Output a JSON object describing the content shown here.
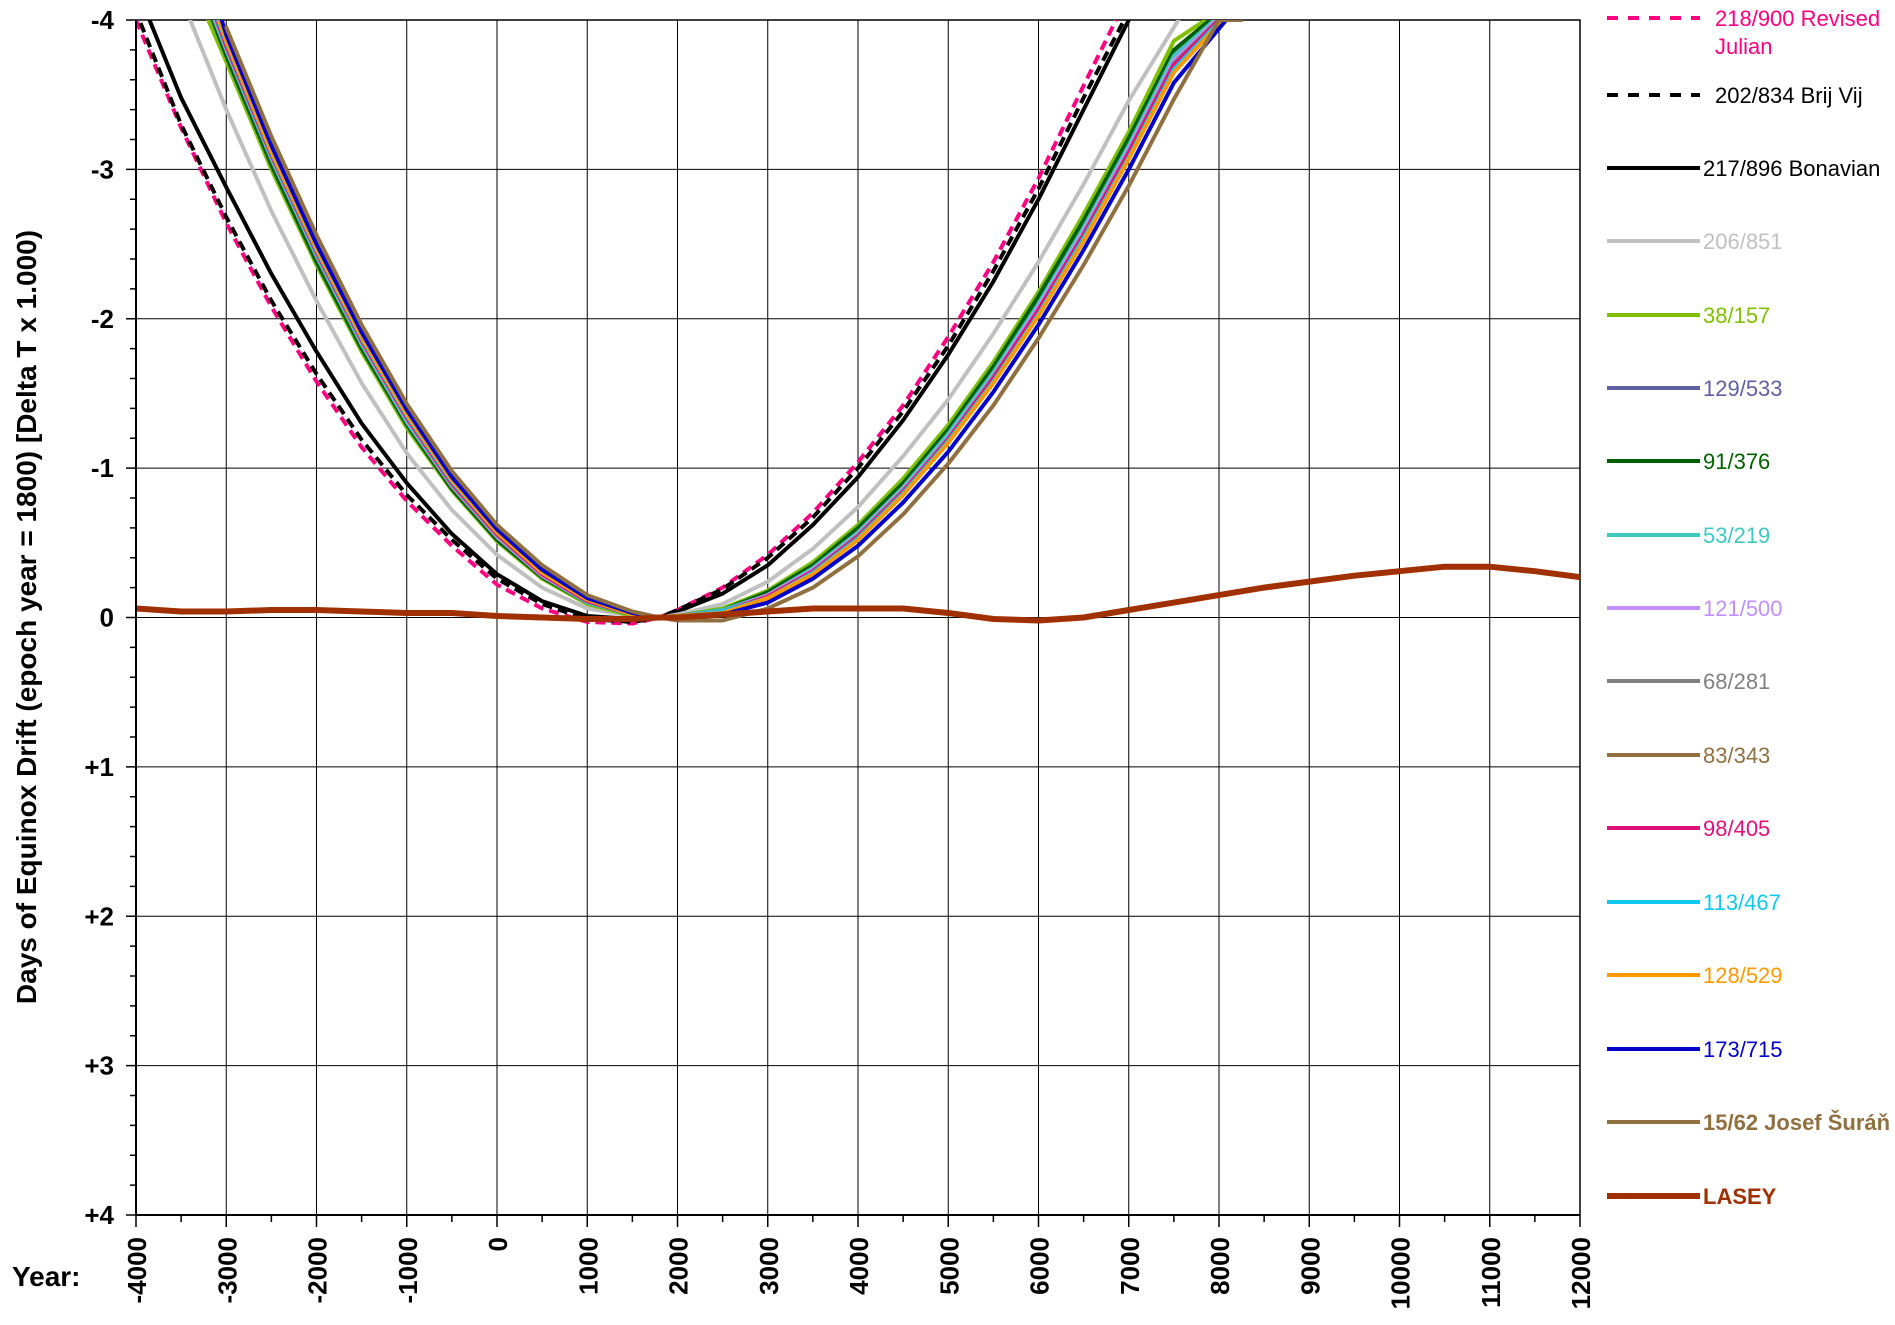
{
  "chart_data": {
    "type": "line",
    "title": "",
    "xlabel": "Year:",
    "ylabel": "Days of Equinox Drift (epoch year = 1800) [Delta T x 1.000)",
    "xlim": [
      -4000,
      12000
    ],
    "ylim": [
      -4,
      4
    ],
    "y_inverted": true,
    "grid": true,
    "legend_position": "right",
    "x_ticks": [
      -4000,
      -3000,
      -2000,
      -1000,
      0,
      1000,
      2000,
      3000,
      4000,
      5000,
      6000,
      7000,
      8000,
      9000,
      10000,
      11000,
      12000
    ],
    "x_tick_labels": [
      "-4000",
      "-3000",
      "-2000",
      "-1000",
      "0",
      "1000",
      "2000",
      "3000",
      "4000",
      "5000",
      "6000",
      "7000",
      "8000",
      "9000",
      "10000",
      "11000",
      "12000"
    ],
    "y_ticks": [
      -4,
      -3,
      -2,
      -1,
      0,
      1,
      2,
      3,
      4
    ],
    "y_tick_labels": [
      "-4",
      "-3",
      "-2",
      "-1",
      "0",
      "+1",
      "+2",
      "+3",
      "+4"
    ],
    "series": [
      {
        "name": "218/900 Revised Julian",
        "color": "#ff0080",
        "dashed": true,
        "bold": false,
        "x": [
          -4000,
          -3500,
          -3000,
          -2500,
          -2000,
          -1500,
          -1000,
          -500,
          0,
          500,
          1000,
          1500,
          1800,
          2000,
          2500,
          3000,
          3500,
          4000,
          4500,
          5000,
          5500,
          6000,
          6500,
          6900
        ],
        "y": [
          -4.0,
          -3.28,
          -2.64,
          -2.08,
          -1.58,
          -1.14,
          -0.78,
          -0.48,
          -0.22,
          -0.06,
          0.03,
          0.04,
          0.0,
          -0.05,
          -0.2,
          -0.42,
          -0.7,
          -1.04,
          -1.42,
          -1.88,
          -2.38,
          -2.94,
          -3.56,
          -4.05
        ]
      },
      {
        "name": "202/834 Brij Vij",
        "color": "#000000",
        "dashed": true,
        "bold": false,
        "x": [
          -3950,
          -3500,
          -3000,
          -2500,
          -2000,
          -1500,
          -1000,
          -500,
          0,
          500,
          1000,
          1500,
          1800,
          2000,
          2500,
          3000,
          3500,
          4000,
          4500,
          5000,
          5500,
          6000,
          6500,
          6950
        ],
        "y": [
          -3.98,
          -3.3,
          -2.68,
          -2.12,
          -1.63,
          -1.19,
          -0.82,
          -0.52,
          -0.26,
          -0.09,
          0.01,
          0.03,
          0.0,
          -0.05,
          -0.19,
          -0.4,
          -0.67,
          -1.0,
          -1.38,
          -1.82,
          -2.32,
          -2.87,
          -3.48,
          -4.0
        ]
      },
      {
        "name": "217/896 Bonavian",
        "color": "#000000",
        "dashed": false,
        "bold": false,
        "x": [
          -3850,
          -3500,
          -3000,
          -2500,
          -2000,
          -1500,
          -1000,
          -500,
          0,
          500,
          1000,
          1500,
          1800,
          2000,
          2500,
          3000,
          3500,
          4000,
          4500,
          5000,
          5500,
          6000,
          6500,
          7000
        ],
        "y": [
          -4.0,
          -3.48,
          -2.88,
          -2.3,
          -1.78,
          -1.3,
          -0.9,
          -0.56,
          -0.29,
          -0.11,
          -0.01,
          0.01,
          0.0,
          -0.04,
          -0.16,
          -0.35,
          -0.62,
          -0.94,
          -1.32,
          -1.76,
          -2.25,
          -2.8,
          -3.4,
          -4.0
        ]
      },
      {
        "name": "206/851",
        "color": "#c0c0c0",
        "dashed": false,
        "bold": false,
        "x": [
          -3400,
          -3000,
          -2500,
          -2000,
          -1500,
          -1000,
          -500,
          0,
          500,
          1000,
          1500,
          1800,
          2000,
          2500,
          3000,
          3500,
          4000,
          4500,
          5000,
          5500,
          6000,
          6500,
          7000,
          7550
        ],
        "y": [
          -4.0,
          -3.4,
          -2.72,
          -2.12,
          -1.57,
          -1.1,
          -0.72,
          -0.42,
          -0.2,
          -0.06,
          -0.01,
          0.0,
          -0.02,
          -0.09,
          -0.24,
          -0.46,
          -0.74,
          -1.08,
          -1.46,
          -1.9,
          -2.38,
          -2.9,
          -3.46,
          -4.0
        ]
      },
      {
        "name": "38/157",
        "color": "#80c000",
        "dashed": false,
        "bold": false,
        "x": [
          -3200,
          -3000,
          -2500,
          -2000,
          -1500,
          -1000,
          -500,
          0,
          500,
          1000,
          1500,
          1800,
          2000,
          2500,
          3000,
          3500,
          4000,
          4500,
          5000,
          5500,
          6000,
          6500,
          7000,
          7500,
          7850
        ],
        "y": [
          -4.0,
          -3.72,
          -3.0,
          -2.36,
          -1.78,
          -1.27,
          -0.85,
          -0.51,
          -0.26,
          -0.09,
          -0.01,
          0.0,
          -0.01,
          -0.06,
          -0.18,
          -0.37,
          -0.62,
          -0.93,
          -1.29,
          -1.71,
          -2.18,
          -2.7,
          -3.25,
          -3.86,
          -4.0
        ]
      },
      {
        "name": "129/533",
        "color": "#6060a0",
        "dashed": false,
        "bold": false,
        "x": [
          -3150,
          -3000,
          -2500,
          -2000,
          -1500,
          -1000,
          -500,
          0,
          500,
          1000,
          1500,
          1800,
          2000,
          2500,
          3000,
          3500,
          4000,
          4500,
          5000,
          5500,
          6000,
          6500,
          7000,
          7500,
          7920
        ],
        "y": [
          -4.0,
          -3.78,
          -3.05,
          -2.4,
          -1.82,
          -1.3,
          -0.87,
          -0.53,
          -0.27,
          -0.1,
          -0.02,
          0.0,
          -0.01,
          -0.05,
          -0.16,
          -0.34,
          -0.59,
          -0.89,
          -1.25,
          -1.66,
          -2.12,
          -2.63,
          -3.18,
          -3.78,
          -4.0
        ]
      },
      {
        "name": "91/376",
        "color": "#006000",
        "dashed": false,
        "bold": false,
        "x": [
          -3150,
          -3000,
          -2500,
          -2000,
          -1500,
          -1000,
          -500,
          0,
          500,
          1000,
          1500,
          1800,
          2000,
          2500,
          3000,
          3500,
          4000,
          4500,
          5000,
          5500,
          6000,
          6500,
          7000,
          7500,
          7900
        ],
        "y": [
          -4.0,
          -3.76,
          -3.03,
          -2.38,
          -1.8,
          -1.29,
          -0.86,
          -0.52,
          -0.27,
          -0.1,
          -0.02,
          0.0,
          -0.01,
          -0.05,
          -0.17,
          -0.35,
          -0.6,
          -0.9,
          -1.26,
          -1.68,
          -2.15,
          -2.66,
          -3.21,
          -3.8,
          -4.0
        ]
      },
      {
        "name": "53/219",
        "color": "#40c8c0",
        "dashed": false,
        "bold": false,
        "x": [
          -3130,
          -3000,
          -2500,
          -2000,
          -1500,
          -1000,
          -500,
          0,
          500,
          1000,
          1500,
          1800,
          2000,
          2500,
          3000,
          3500,
          4000,
          4500,
          5000,
          5500,
          6000,
          6500,
          7000,
          7500,
          7950
        ],
        "y": [
          -4.0,
          -3.8,
          -3.07,
          -2.42,
          -1.83,
          -1.31,
          -0.88,
          -0.54,
          -0.28,
          -0.1,
          -0.02,
          0.0,
          -0.01,
          -0.05,
          -0.15,
          -0.33,
          -0.57,
          -0.87,
          -1.23,
          -1.64,
          -2.1,
          -2.61,
          -3.16,
          -3.76,
          -4.0
        ]
      },
      {
        "name": "121/500",
        "color": "#c090ff",
        "dashed": false,
        "bold": false,
        "x": [
          -3120,
          -3000,
          -2500,
          -2000,
          -1500,
          -1000,
          -500,
          0,
          500,
          1000,
          1500,
          1800,
          2000,
          2500,
          3000,
          3500,
          4000,
          4500,
          5000,
          5500,
          6000,
          6500,
          7000,
          7500,
          7970
        ],
        "y": [
          -4.0,
          -3.81,
          -3.08,
          -2.43,
          -1.84,
          -1.32,
          -0.88,
          -0.54,
          -0.28,
          -0.11,
          -0.02,
          0.0,
          -0.01,
          -0.04,
          -0.15,
          -0.32,
          -0.56,
          -0.86,
          -1.21,
          -1.62,
          -2.08,
          -2.59,
          -3.14,
          -3.73,
          -4.0
        ]
      },
      {
        "name": "68/281",
        "color": "#808080",
        "dashed": false,
        "bold": false,
        "x": [
          -3110,
          -3000,
          -2500,
          -2000,
          -1500,
          -1000,
          -500,
          0,
          500,
          1000,
          1500,
          1800,
          2000,
          2500,
          3000,
          3500,
          4000,
          4500,
          5000,
          5500,
          6000,
          6500,
          7000,
          7500,
          7990
        ],
        "y": [
          -4.0,
          -3.82,
          -3.09,
          -2.44,
          -1.85,
          -1.33,
          -0.89,
          -0.55,
          -0.29,
          -0.11,
          -0.02,
          0.0,
          -0.01,
          -0.04,
          -0.14,
          -0.31,
          -0.55,
          -0.85,
          -1.2,
          -1.61,
          -2.06,
          -2.57,
          -3.12,
          -3.71,
          -4.0
        ]
      },
      {
        "name": "83/343",
        "color": "#907040",
        "dashed": false,
        "bold": false,
        "x": [
          -3100,
          -3000,
          -2500,
          -2000,
          -1500,
          -1000,
          -500,
          0,
          500,
          1000,
          1500,
          1800,
          2000,
          2500,
          3000,
          3500,
          4000,
          4500,
          5000,
          5500,
          6000,
          6500,
          7000,
          7500,
          8010
        ],
        "y": [
          -4.0,
          -3.84,
          -3.1,
          -2.45,
          -1.86,
          -1.34,
          -0.9,
          -0.56,
          -0.29,
          -0.11,
          -0.02,
          0.0,
          -0.01,
          -0.04,
          -0.14,
          -0.31,
          -0.54,
          -0.84,
          -1.19,
          -1.59,
          -2.05,
          -2.55,
          -3.1,
          -3.69,
          -4.0
        ]
      },
      {
        "name": "98/405",
        "color": "#e0107a",
        "dashed": false,
        "bold": false,
        "x": [
          -3100,
          -3000,
          -2500,
          -2000,
          -1500,
          -1000,
          -500,
          0,
          500,
          1000,
          1500,
          1800,
          2000,
          2500,
          3000,
          3500,
          4000,
          4500,
          5000,
          5500,
          6000,
          6500,
          7000,
          7500,
          8000
        ],
        "y": [
          -4.0,
          -3.83,
          -3.1,
          -2.45,
          -1.86,
          -1.34,
          -0.9,
          -0.56,
          -0.29,
          -0.11,
          -0.02,
          0.0,
          -0.01,
          -0.04,
          -0.14,
          -0.31,
          -0.54,
          -0.84,
          -1.19,
          -1.6,
          -2.06,
          -2.56,
          -3.11,
          -3.7,
          -4.0
        ]
      },
      {
        "name": "113/467",
        "color": "#10c8f0",
        "dashed": false,
        "bold": false,
        "x": [
          -3090,
          -3000,
          -2500,
          -2000,
          -1500,
          -1000,
          -500,
          0,
          500,
          1000,
          1500,
          1800,
          2000,
          2500,
          3000,
          3500,
          4000,
          4500,
          5000,
          5500,
          6000,
          6500,
          7000,
          7500,
          8020
        ],
        "y": [
          -4.0,
          -3.85,
          -3.11,
          -2.46,
          -1.87,
          -1.35,
          -0.91,
          -0.57,
          -0.3,
          -0.12,
          -0.02,
          0.0,
          -0.01,
          -0.04,
          -0.13,
          -0.3,
          -0.53,
          -0.83,
          -1.18,
          -1.58,
          -2.03,
          -2.54,
          -3.08,
          -3.67,
          -4.0
        ]
      },
      {
        "name": "128/529",
        "color": "#ff9900",
        "dashed": false,
        "bold": false,
        "x": [
          -3080,
          -3000,
          -2500,
          -2000,
          -1500,
          -1000,
          -500,
          0,
          500,
          1000,
          1500,
          1800,
          2000,
          2500,
          3000,
          3500,
          4000,
          4500,
          5000,
          5500,
          6000,
          6500,
          7000,
          7500,
          8040
        ],
        "y": [
          -4.0,
          -3.86,
          -3.12,
          -2.47,
          -1.88,
          -1.36,
          -0.92,
          -0.57,
          -0.3,
          -0.12,
          -0.02,
          0.0,
          -0.01,
          -0.03,
          -0.13,
          -0.29,
          -0.52,
          -0.82,
          -1.17,
          -1.57,
          -2.02,
          -2.52,
          -3.07,
          -3.65,
          -4.0
        ]
      },
      {
        "name": "173/715",
        "color": "#0000c8",
        "dashed": false,
        "bold": false,
        "x": [
          -3050,
          -3000,
          -2500,
          -2000,
          -1500,
          -1000,
          -500,
          0,
          500,
          1000,
          1500,
          1800,
          2000,
          2500,
          3000,
          3500,
          4000,
          4500,
          5000,
          5500,
          6000,
          6500,
          7000,
          7500,
          8080
        ],
        "y": [
          -4.0,
          -3.9,
          -3.16,
          -2.5,
          -1.91,
          -1.39,
          -0.94,
          -0.59,
          -0.32,
          -0.13,
          -0.03,
          0.0,
          0.0,
          -0.02,
          -0.1,
          -0.26,
          -0.48,
          -0.77,
          -1.11,
          -1.51,
          -1.96,
          -2.46,
          -3.0,
          -3.58,
          -4.0
        ]
      },
      {
        "name": "15/62 Josef Šuráň",
        "color": "#907040",
        "dashed": false,
        "bold": false,
        "label_bold": true,
        "x": [
          -3000,
          -2500,
          -2000,
          -1500,
          -1000,
          -500,
          0,
          500,
          1000,
          1500,
          1800,
          2000,
          2500,
          3000,
          3500,
          4000,
          4500,
          5000,
          5500,
          6000,
          6500,
          7000,
          7500,
          8000,
          8250
        ],
        "y": [
          -3.95,
          -3.22,
          -2.56,
          -1.96,
          -1.43,
          -0.98,
          -0.62,
          -0.35,
          -0.15,
          -0.04,
          0.0,
          0.02,
          0.02,
          -0.06,
          -0.2,
          -0.41,
          -0.69,
          -1.03,
          -1.42,
          -1.87,
          -2.36,
          -2.89,
          -3.47,
          -4.0,
          -4.0
        ]
      },
      {
        "name": "LASEY",
        "color": "#a03000",
        "dashed": false,
        "bold": true,
        "label_bold": true,
        "x": [
          -4000,
          -3500,
          -3000,
          -2500,
          -2000,
          -1500,
          -1000,
          -500,
          0,
          500,
          1000,
          1500,
          1800,
          2000,
          2500,
          3000,
          3500,
          4000,
          4500,
          5000,
          5500,
          6000,
          6500,
          7000,
          7500,
          8000,
          8500,
          9000,
          9500,
          10000,
          10500,
          11000,
          11500,
          12000
        ],
        "y": [
          -0.06,
          -0.04,
          -0.04,
          -0.05,
          -0.05,
          -0.04,
          -0.03,
          -0.03,
          -0.01,
          0.0,
          0.01,
          0.01,
          0.0,
          0.0,
          -0.02,
          -0.04,
          -0.06,
          -0.06,
          -0.06,
          -0.03,
          0.01,
          0.02,
          0.0,
          -0.05,
          -0.1,
          -0.15,
          -0.2,
          -0.24,
          -0.28,
          -0.31,
          -0.34,
          -0.34,
          -0.31,
          -0.27
        ]
      }
    ]
  }
}
